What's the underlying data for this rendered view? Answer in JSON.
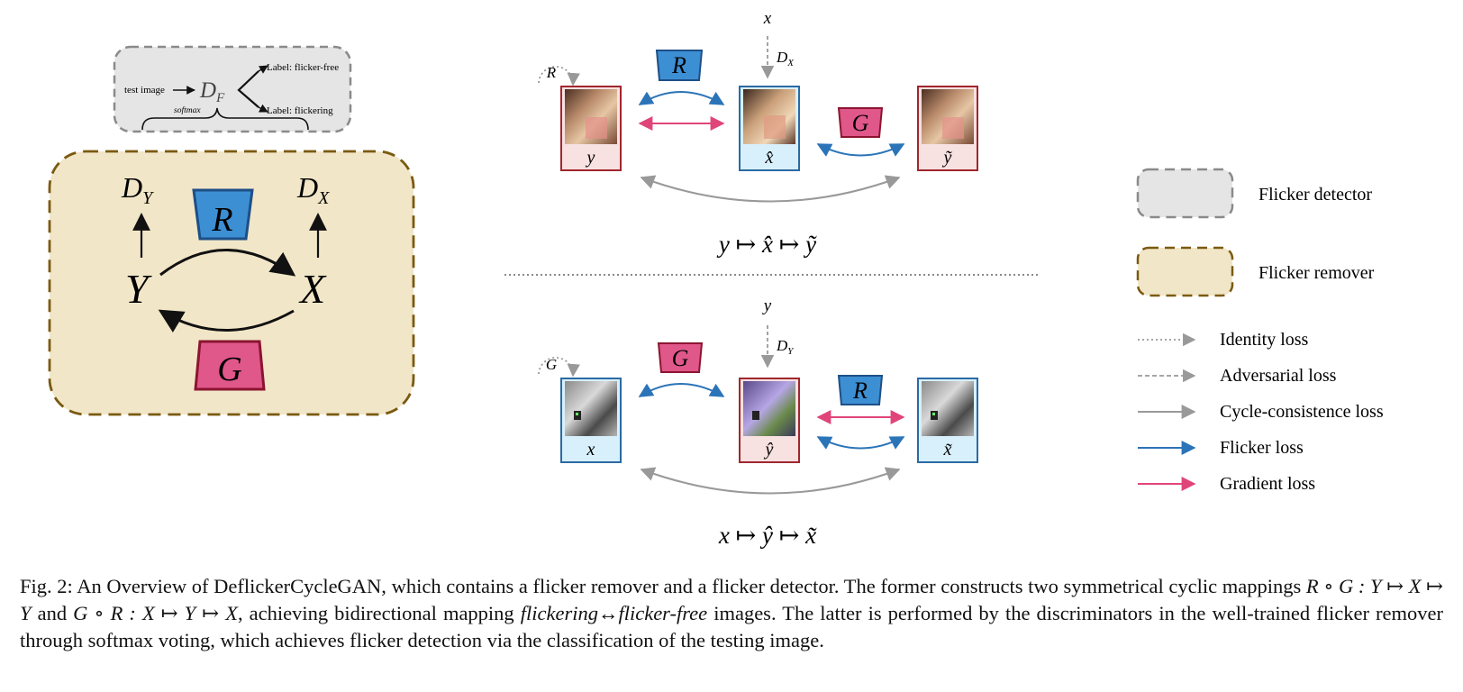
{
  "detector": {
    "test_image": "test image",
    "df_letter": "D",
    "df_sub": "F",
    "label_free": "Label: flicker-free",
    "label_flickering": "Label: flickering",
    "softmax": "softmax"
  },
  "remover": {
    "dy_letter": "D",
    "dy_sub": "Y",
    "dx_letter": "D",
    "dx_sub": "X",
    "r": "R",
    "g": "G",
    "y": "Y",
    "x": "X"
  },
  "top_row": {
    "identity_label": "R",
    "r_label": "R",
    "g_label": "G",
    "x_top": "x",
    "dx_letter": "D",
    "dx_sub": "X",
    "img1": "y",
    "img2": "x̂",
    "img3": "ỹ",
    "mapping": "y ↦ x̂ ↦ ỹ"
  },
  "bottom_row": {
    "identity_label": "G",
    "g_label": "G",
    "r_label": "R",
    "y_top": "y",
    "dy_letter": "D",
    "dy_sub": "Y",
    "img1": "x",
    "img2": "ŷ",
    "img3": "x̃",
    "mapping": "x ↦ ŷ ↦ x̃"
  },
  "legend": {
    "flicker_detector": "Flicker detector",
    "flicker_remover": "Flicker remover",
    "identity_loss": "Identity loss",
    "adversarial_loss": "Adversarial loss",
    "cycle_loss": "Cycle-consistence loss",
    "flicker_loss": "Flicker loss",
    "gradient_loss": "Gradient loss"
  },
  "colors": {
    "remover_fill": "#f2e6c8",
    "remover_border": "#7a5a10",
    "detector_fill": "#e5e5e5",
    "r_block": "#3d8fd4",
    "g_block": "#e0578a",
    "flicker_arrow": "#2b74b8",
    "gradient_arrow": "#e0457a",
    "cycle_arrow": "#999999"
  },
  "caption": {
    "p1": "Fig. 2: An Overview of DeflickerCycleGAN, which contains a flicker remover and a flicker detector. The former constructs two symmetrical cyclic mappings ",
    "m1": "R ∘ G : Y ↦ X ↦ Y",
    "p2": " and ",
    "m2": "G ∘ R : X ↦ Y ↦ X",
    "p3": ", achieving bidirectional mapping ",
    "i1": "flickering↔flicker-free",
    "p4": " images. The latter is performed by the discriminators in the well-trained flicker remover through softmax voting, which achieves flicker detection via the classification of the testing image."
  }
}
